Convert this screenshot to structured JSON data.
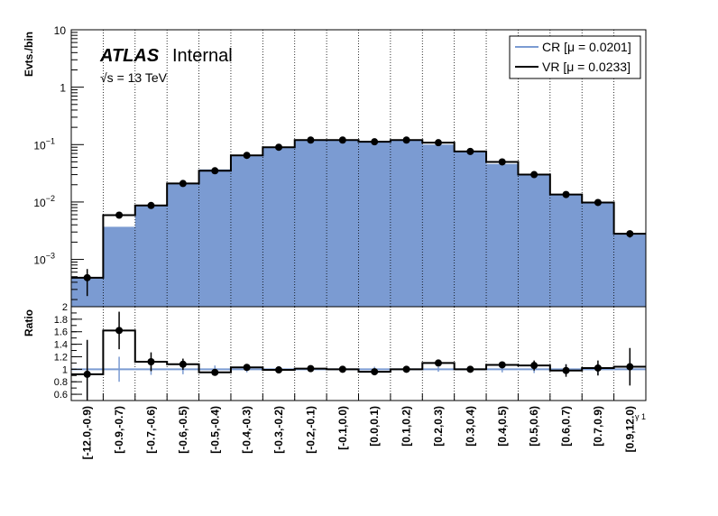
{
  "chart_data": {
    "type": "bar",
    "categories": [
      "[-12.0,-0.9)",
      "[-0.9,-0.7)",
      "[-0.7,-0.6)",
      "[-0.6,-0.5)",
      "[-0.5,-0.4)",
      "[-0.4,-0.3)",
      "[-0.3,-0.2)",
      "[-0.2,-0.1)",
      "[-0.1,0.0)",
      "[0.0,0.1)",
      "[0.1,0.2)",
      "[0.2,0.3)",
      "[0.3,0.4)",
      "[0.4,0.5)",
      "[0.5,0.6)",
      "[0.6,0.7)",
      "[0.7,0.9)",
      "[0.9,12.0)"
    ],
    "xlabel_suffix": "γ 1",
    "top_panel": {
      "ylabel": "Evts./bin",
      "yscale": "log",
      "ylim": [
        0.00015,
        10
      ],
      "ytick_labels": [
        {
          "value": 0.001,
          "base": "10",
          "exp": "−3"
        },
        {
          "value": 0.01,
          "base": "10",
          "exp": "−2"
        },
        {
          "value": 0.1,
          "base": "10",
          "exp": "−1"
        },
        {
          "value": 1,
          "base": "1",
          "exp": ""
        },
        {
          "value": 10,
          "base": "10",
          "exp": ""
        }
      ],
      "series": [
        {
          "name": "CR [μ = 0.0201]",
          "style": "filled-histogram",
          "color": "#7b9bd2",
          "values": [
            0.00048,
            0.0037,
            0.0085,
            0.021,
            0.037,
            0.063,
            0.091,
            0.119,
            0.122,
            0.116,
            0.121,
            0.1,
            0.075,
            0.046,
            0.029,
            0.0137,
            0.0101,
            0.0027
          ]
        },
        {
          "name": "VR [μ = 0.0233]",
          "style": "step-with-points",
          "color": "#000000",
          "values": [
            0.00048,
            0.0059,
            0.0087,
            0.021,
            0.035,
            0.065,
            0.09,
            0.12,
            0.12,
            0.112,
            0.12,
            0.108,
            0.076,
            0.05,
            0.03,
            0.0135,
            0.0098,
            0.0028
          ],
          "yerr_low": [
            0.00025,
            0.0007,
            0.0006,
            0.001,
            0.0015,
            0.002,
            0.0025,
            0.003,
            0.003,
            0.003,
            0.003,
            0.003,
            0.0025,
            0.002,
            0.0015,
            0.001,
            0.0008,
            0.0004
          ],
          "yerr_high": [
            0.0002,
            0.0007,
            0.0006,
            0.001,
            0.0015,
            0.002,
            0.0025,
            0.003,
            0.003,
            0.003,
            0.003,
            0.003,
            0.0025,
            0.002,
            0.0015,
            0.001,
            0.0008,
            0.0004
          ]
        }
      ]
    },
    "ratio_panel": {
      "ylabel": "Ratio",
      "ylim": [
        0.5,
        2.0
      ],
      "ytick_labels": [
        "0.6",
        "0.8",
        "1",
        "1.2",
        "1.4",
        "1.6",
        "1.8",
        "2"
      ],
      "reference_line": 1.0,
      "reference_color": "#7b9bd2",
      "cr_err": [
        0.45,
        0.2,
        0.09,
        0.08,
        0.06,
        0.05,
        0.05,
        0.04,
        0.04,
        0.04,
        0.04,
        0.04,
        0.04,
        0.05,
        0.06,
        0.08,
        0.09,
        0.17
      ],
      "values": [
        0.92,
        1.62,
        1.12,
        1.08,
        0.95,
        1.03,
        0.99,
        1.01,
        1.0,
        0.96,
        1.0,
        1.1,
        1.0,
        1.07,
        1.06,
        0.98,
        1.02,
        1.04
      ],
      "yerr": [
        0.55,
        0.3,
        0.15,
        0.09,
        0.05,
        0.05,
        0.04,
        0.04,
        0.04,
        0.04,
        0.04,
        0.05,
        0.04,
        0.05,
        0.08,
        0.1,
        0.12,
        0.3
      ]
    },
    "annotations": {
      "atlas": "ATLAS",
      "internal": "Internal",
      "energy": "√s = 13 TeV"
    },
    "legend_position": "top-right",
    "grid": "vertical dotted at bin edges"
  }
}
